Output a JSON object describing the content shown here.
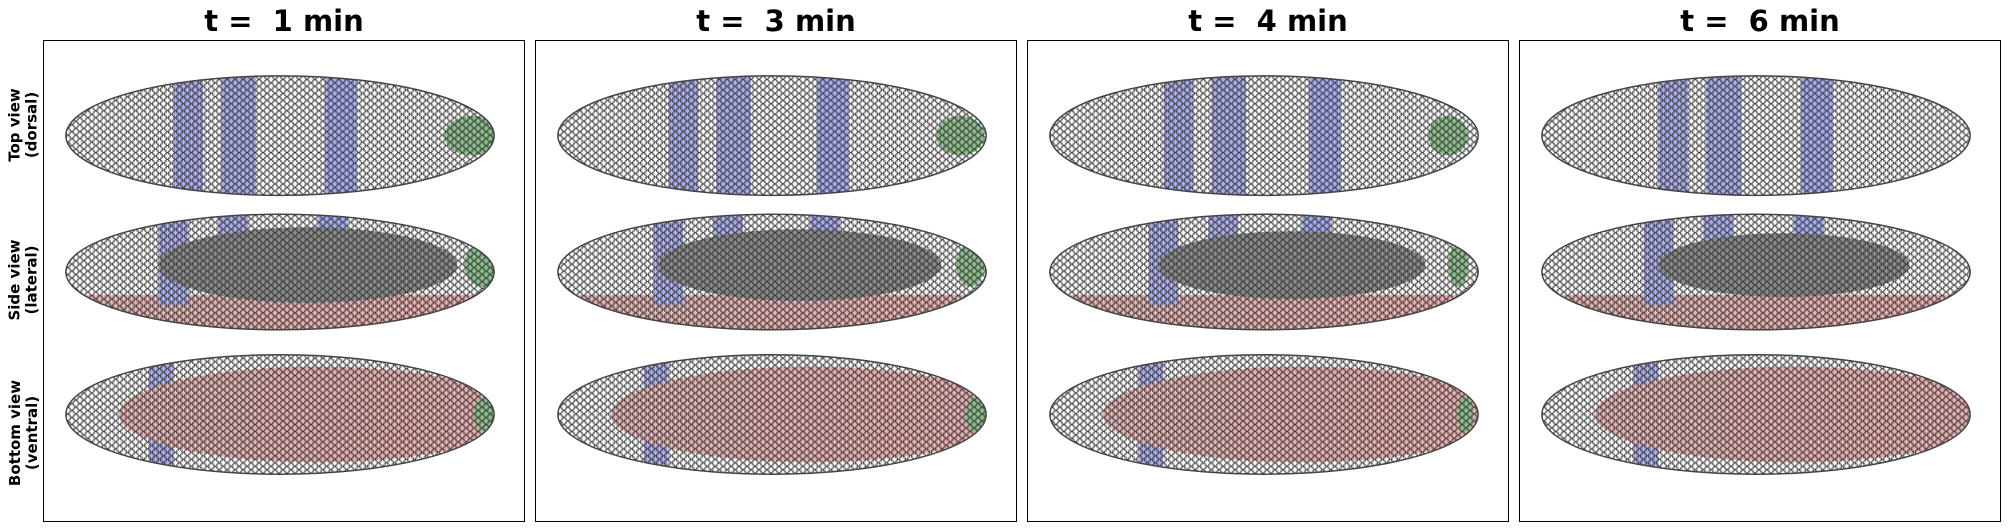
{
  "rows": [
    {
      "id": "top",
      "label_line1": "Top view",
      "label_line2": "(dorsal)"
    },
    {
      "id": "side",
      "label_line1": "Side view",
      "label_line2": "(lateral)"
    },
    {
      "id": "bottom",
      "label_line1": "Bottom view",
      "label_line2": "(ventral)"
    }
  ],
  "panels": [
    {
      "title": "t =  1 min"
    },
    {
      "title": "t =  3 min"
    },
    {
      "title": "t =  4 min"
    },
    {
      "title": "t =  6 min"
    }
  ],
  "colors": {
    "cell_fill": "#ffffff",
    "cell_edge": "#333333",
    "stripe_blue": "#a9aef0",
    "mesoderm_red": "#e9b3b3",
    "posterior_green": "#8fc08f",
    "interior_gray": "#8a8a8a"
  }
}
